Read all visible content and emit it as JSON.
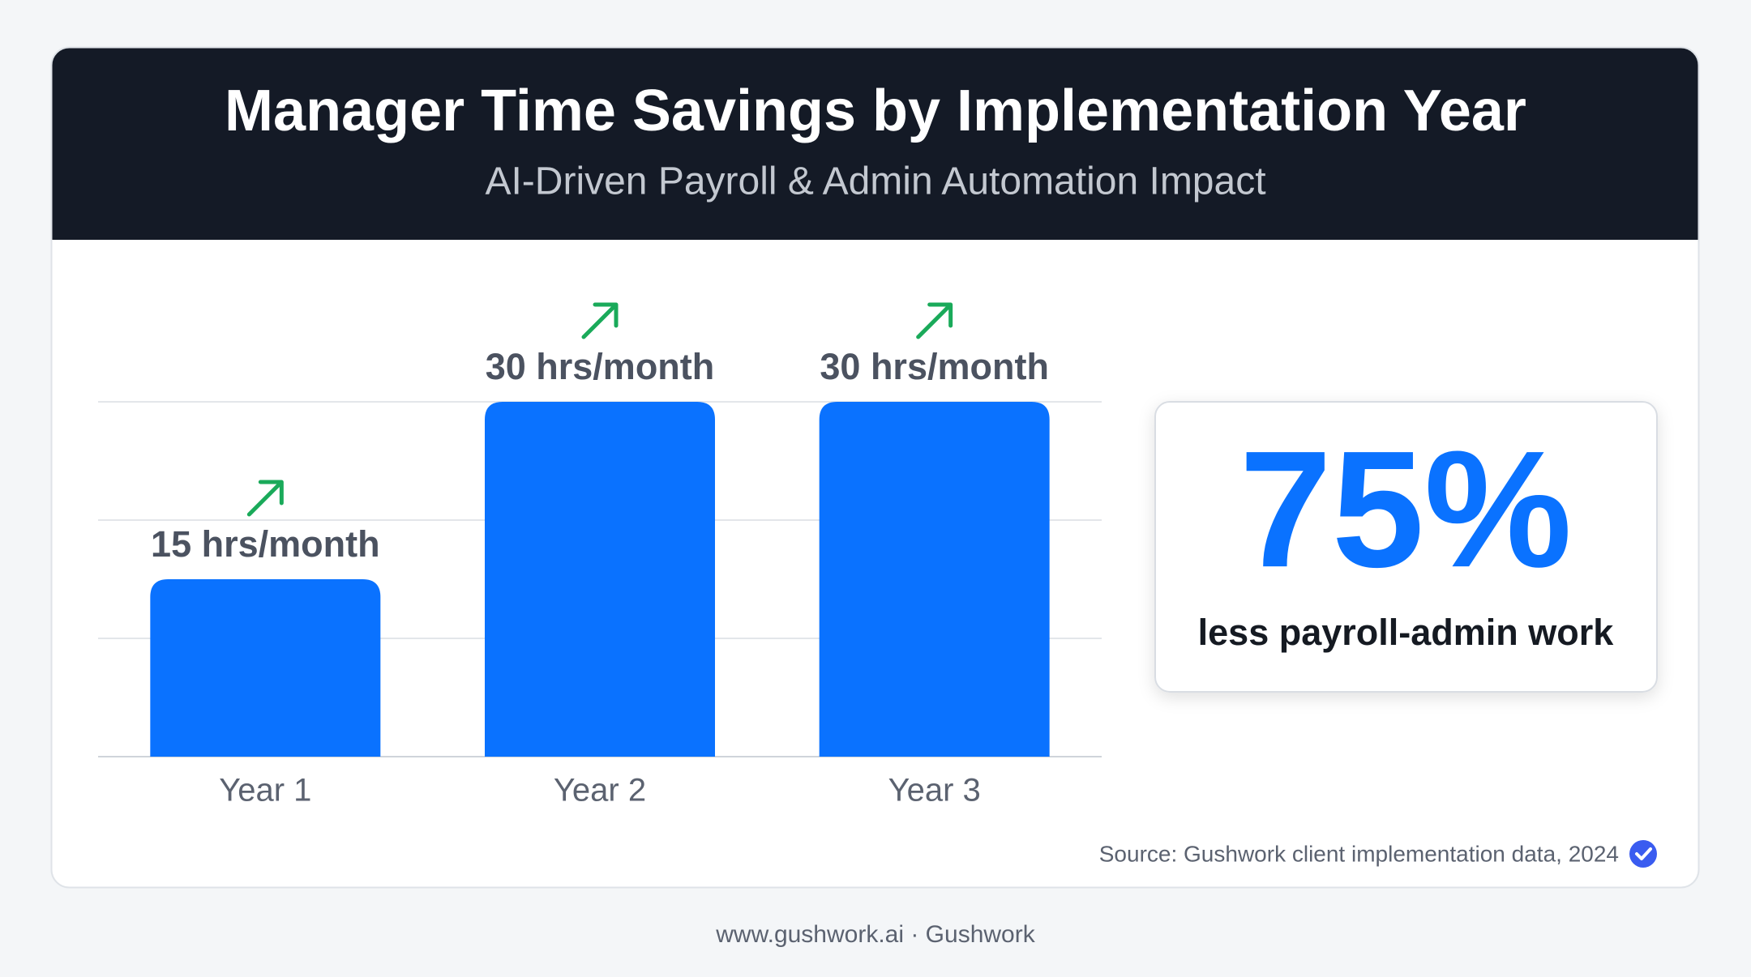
{
  "chart_data": {
    "type": "bar",
    "title": "Manager Time Savings by Implementation Year",
    "subtitle": "AI-Driven Payroll & Admin Automation Impact",
    "categories": [
      "Year 1",
      "Year 2",
      "Year 3"
    ],
    "values": [
      15,
      30,
      30
    ],
    "value_labels": [
      "15 hrs/month",
      "30 hrs/month",
      "30 hrs/month"
    ],
    "color": "#0a72ff",
    "ylim": [
      0,
      30
    ],
    "yticks": [
      0,
      10,
      20,
      30
    ],
    "grid": true
  },
  "callout": {
    "value_label": "75%",
    "text": "less payroll-admin work"
  },
  "source": "Source: Gushwork client implementation data, 2024",
  "footer": "www.gushwork.ai · Gushwork"
}
